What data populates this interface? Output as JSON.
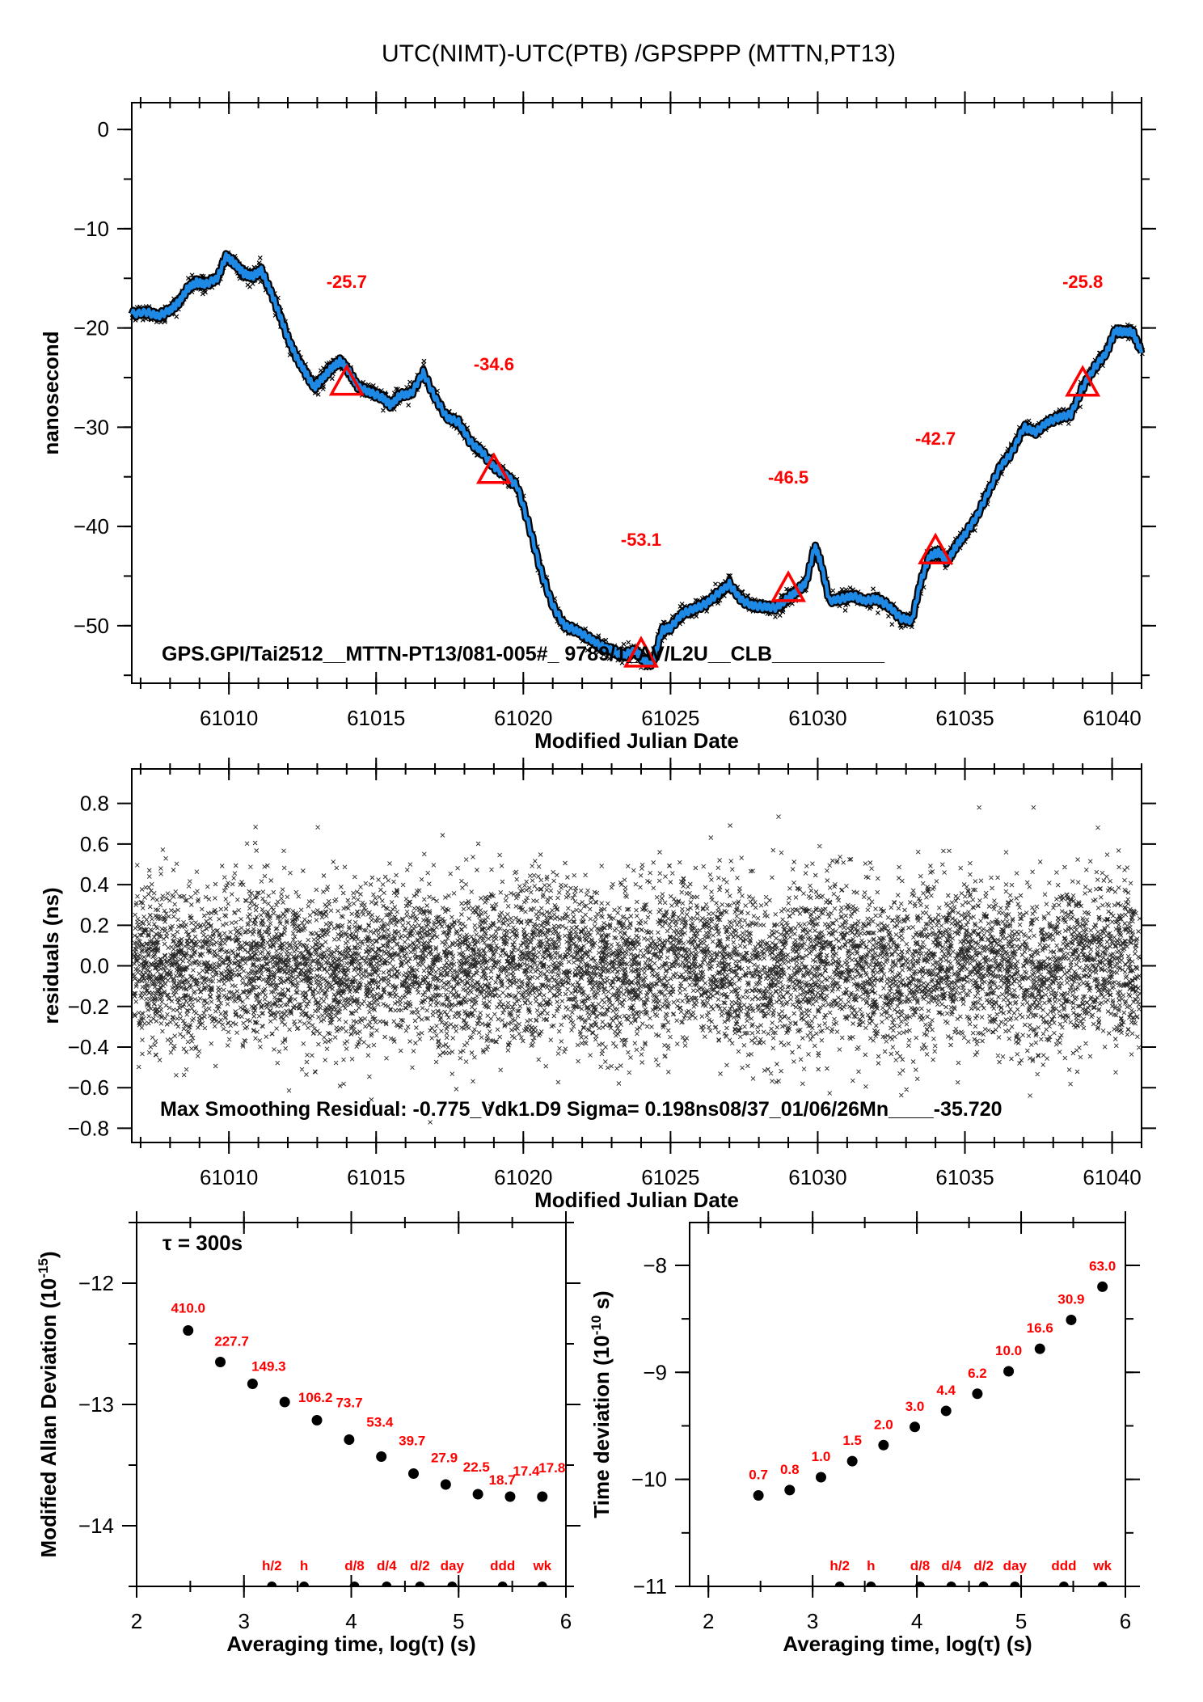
{
  "title": "UTC(NIMT)-UTC(PTB)  /GPSPPP  (MTTN,PT13)",
  "colors": {
    "smooth_line": "#1e88e5",
    "raw_points": "#000000",
    "markers": "#ff0000",
    "annotations": "#ff0000"
  },
  "chart_data": [
    {
      "id": "time-series",
      "type": "line",
      "title": "UTC(NIMT)-UTC(PTB)  /GPSPPP  (MTTN,PT13)",
      "xlabel": "Modified Julian Date",
      "ylabel": "nanosecond",
      "xlim": [
        61006.7,
        61041
      ],
      "ylim": [
        -55.8,
        2.7
      ],
      "xticks": [
        61010,
        61015,
        61020,
        61025,
        61030,
        61035,
        61040
      ],
      "xtick_labels": [
        "61010",
        "61015",
        "61020",
        "61025",
        "61030",
        "61035",
        "61040"
      ],
      "yticks": [
        0,
        -10,
        -20,
        -30,
        -40,
        -50
      ],
      "ytick_labels": [
        "0",
        "−10",
        "−20",
        "−30",
        "−40",
        "−50"
      ],
      "grid": false,
      "annotation": "GPS.GPI/Tai2512__MTTN-PT13/081-005#_ 9789/1_AV/L2U__CLB__________",
      "series": [
        {
          "name": "smoothed",
          "x": [
            61006.7,
            61007.2,
            61007.6,
            61008.0,
            61008.3,
            61008.6,
            61008.9,
            61009.2,
            61009.6,
            61009.9,
            61010.2,
            61010.5,
            61010.8,
            61011.1,
            61011.4,
            61011.7,
            61012.0,
            61012.3,
            61012.6,
            61012.9,
            61013.2,
            61013.5,
            61013.8,
            61014.1,
            61014.4,
            61014.8,
            61015.2,
            61015.5,
            61015.8,
            61016.2,
            61016.6,
            61017.0,
            61017.4,
            61017.8,
            61018.2,
            61018.6,
            61019.0,
            61019.4,
            61019.8,
            61020.2,
            61020.6,
            61021.0,
            61021.4,
            61021.8,
            61022.2,
            61022.6,
            61023.0,
            61023.4,
            61023.8,
            61024.1,
            61024.4,
            61024.7,
            61025.0,
            61025.4,
            61025.8,
            61026.2,
            61026.6,
            61027.0,
            61027.4,
            61027.8,
            61028.2,
            61028.6,
            61029.0,
            61029.3,
            61029.6,
            61029.9,
            61030.1,
            61030.4,
            61030.8,
            61031.2,
            61031.6,
            61032.0,
            61032.4,
            61032.8,
            61033.2,
            61033.5,
            61033.8,
            61034.1,
            61034.4,
            61034.7,
            61035.0,
            61035.4,
            61035.8,
            61036.2,
            61036.6,
            61037.0,
            61037.4,
            61037.8,
            61038.2,
            61038.6,
            61039.0,
            61039.4,
            61039.8,
            61040.1,
            61040.4,
            61040.7,
            61041.0
          ],
          "y": [
            -18.6,
            -18.4,
            -18.8,
            -18.2,
            -17.4,
            -16.0,
            -15.4,
            -15.6,
            -15.0,
            -12.8,
            -13.5,
            -14.5,
            -14.8,
            -14.2,
            -16.2,
            -18.5,
            -21.0,
            -23.0,
            -24.5,
            -26.0,
            -25.0,
            -24.0,
            -23.3,
            -24.5,
            -26.0,
            -26.5,
            -27.0,
            -27.8,
            -26.8,
            -26.6,
            -24.5,
            -27.0,
            -29.0,
            -29.5,
            -31.5,
            -32.5,
            -34.0,
            -34.8,
            -36.0,
            -40.0,
            -44.5,
            -48.0,
            -50.0,
            -50.5,
            -51.2,
            -52.0,
            -52.5,
            -53.0,
            -52.5,
            -53.5,
            -53.8,
            -50.5,
            -50.2,
            -48.8,
            -48.3,
            -47.8,
            -46.8,
            -45.8,
            -47.4,
            -48.0,
            -48.1,
            -48.2,
            -47.2,
            -46.5,
            -45.7,
            -42.0,
            -43.6,
            -47.5,
            -47.3,
            -47.0,
            -47.5,
            -47.3,
            -48.0,
            -49.2,
            -49.5,
            -45.5,
            -43.0,
            -42.6,
            -43.5,
            -42.0,
            -40.8,
            -39.0,
            -36.5,
            -34.0,
            -32.5,
            -30.0,
            -30.5,
            -29.5,
            -29.0,
            -28.7,
            -26.0,
            -24.0,
            -22.5,
            -20.3,
            -20.4,
            -20.4,
            -22.5
          ]
        }
      ],
      "markers": [
        {
          "x": 61014.0,
          "y": -25.7,
          "label": "-25.7"
        },
        {
          "x": 61019.0,
          "y": -34.6,
          "label": "-34.6"
        },
        {
          "x": 61024.0,
          "y": -53.1,
          "label": "-53.1"
        },
        {
          "x": 61029.0,
          "y": -46.5,
          "label": "-46.5"
        },
        {
          "x": 61034.0,
          "y": -42.7,
          "label": "-42.7"
        },
        {
          "x": 61039.0,
          "y": -25.8,
          "label": "-25.8"
        }
      ]
    },
    {
      "id": "residuals",
      "type": "scatter",
      "xlabel": "Modified Julian Date",
      "ylabel": "residuals (ns)",
      "xlim": [
        61006.7,
        61041
      ],
      "ylim": [
        -0.87,
        0.97
      ],
      "xticks": [
        61010,
        61015,
        61020,
        61025,
        61030,
        61035,
        61040
      ],
      "xtick_labels": [
        "61010",
        "61015",
        "61020",
        "61025",
        "61030",
        "61035",
        "61040"
      ],
      "yticks": [
        0.8,
        0.6,
        0.4,
        0.2,
        0.0,
        -0.2,
        -0.4,
        -0.6,
        -0.8
      ],
      "ytick_labels": [
        "0.8",
        "0.6",
        "0.4",
        "0.2",
        "0.0",
        "−0.2",
        "−0.4",
        "−0.6",
        "−0.8"
      ],
      "grid": false,
      "sigma_ns": 0.198,
      "max_residual": -0.775,
      "annotation": "Max Smoothing Residual: -0.775_Vdk1.D9  Sigma= 0.198ns08/37_01/06/26Mn____-35.720"
    },
    {
      "id": "modified-allan-deviation",
      "type": "scatter",
      "xlabel": "Averaging time, log(τ) (s)",
      "ylabel": "Modified Allan Deviation (10",
      "ylabel_sup": "-15",
      "ylabel_end": ")",
      "xlim": [
        2,
        6
      ],
      "ylim": [
        -14.5,
        -11.5
      ],
      "xticks": [
        2,
        3,
        4,
        5,
        6
      ],
      "xtick_labels": [
        "2",
        "3",
        "4",
        "5",
        "6"
      ],
      "yticks": [
        -12,
        -13,
        -14
      ],
      "ytick_labels": [
        "−12",
        "−13",
        "−14"
      ],
      "tau_note": "τ = 300s",
      "x": [
        2.48,
        2.78,
        3.08,
        3.38,
        3.68,
        3.98,
        4.28,
        4.58,
        4.88,
        5.18,
        5.48,
        5.78
      ],
      "y": [
        -12.39,
        -12.65,
        -12.83,
        -12.98,
        -13.13,
        -13.29,
        -13.43,
        -13.57,
        -13.66,
        -13.74,
        -13.76,
        -13.76
      ],
      "labels": [
        "410.0",
        "227.7",
        "149.3",
        "106.2",
        "73.7",
        "53.4",
        "39.7",
        "27.9",
        "22.5",
        "18.7",
        "17.4",
        "17.8"
      ],
      "time_markers": [
        {
          "x": 3.26,
          "label": "h/2"
        },
        {
          "x": 3.56,
          "label": "h"
        },
        {
          "x": 4.03,
          "label": "d/8"
        },
        {
          "x": 4.33,
          "label": "d/4"
        },
        {
          "x": 4.64,
          "label": "d/2"
        },
        {
          "x": 4.94,
          "label": "day"
        },
        {
          "x": 5.41,
          "label": "ddd"
        },
        {
          "x": 5.78,
          "label": "wk"
        }
      ]
    },
    {
      "id": "time-deviation",
      "type": "scatter",
      "xlabel": "Averaging time, log(τ) (s)",
      "ylabel": "Time deviation (10",
      "ylabel_sup": "-10",
      "ylabel_end": " s)",
      "xlim": [
        1.82,
        6
      ],
      "ylim": [
        -11,
        -7.6
      ],
      "xticks": [
        2,
        3,
        4,
        5,
        6
      ],
      "xtick_labels": [
        "2",
        "3",
        "4",
        "5",
        "6"
      ],
      "yticks": [
        -8,
        -9,
        -10,
        -11
      ],
      "ytick_labels": [
        "−8",
        "−9",
        "−10",
        "−11"
      ],
      "x": [
        2.48,
        2.78,
        3.08,
        3.38,
        3.68,
        3.98,
        4.28,
        4.58,
        4.88,
        5.18,
        5.48,
        5.78
      ],
      "y": [
        -10.15,
        -10.1,
        -9.98,
        -9.83,
        -9.68,
        -9.51,
        -9.36,
        -9.2,
        -8.99,
        -8.78,
        -8.51,
        -8.2
      ],
      "labels": [
        "0.7",
        "0.8",
        "1.0",
        "1.5",
        "2.0",
        "3.0",
        "4.4",
        "6.2",
        "10.0",
        "16.6",
        "30.9",
        "63.0"
      ],
      "time_markers": [
        {
          "x": 3.26,
          "label": "h/2"
        },
        {
          "x": 3.56,
          "label": "h"
        },
        {
          "x": 4.03,
          "label": "d/8"
        },
        {
          "x": 4.33,
          "label": "d/4"
        },
        {
          "x": 4.64,
          "label": "d/2"
        },
        {
          "x": 4.94,
          "label": "day"
        },
        {
          "x": 5.41,
          "label": "ddd"
        },
        {
          "x": 5.78,
          "label": "wk"
        }
      ]
    }
  ]
}
